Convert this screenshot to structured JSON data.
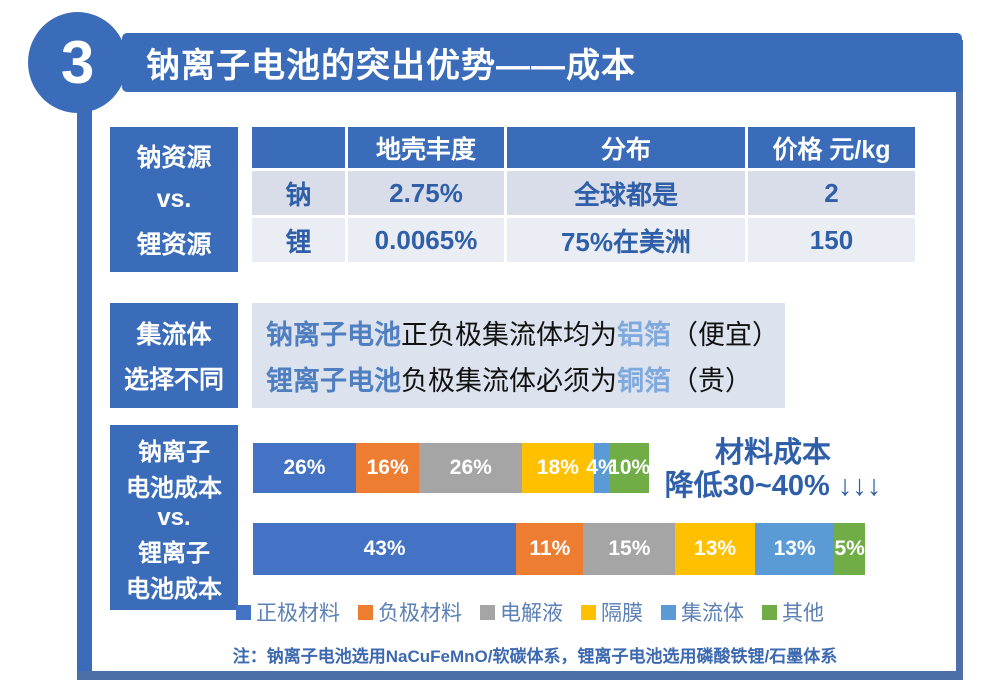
{
  "slide": {
    "number": "3",
    "title": "钠离子电池的突出优势——成本"
  },
  "colors": {
    "primary_blue": "#3a6cba",
    "frame_blue": "#4d6fa8",
    "value_text_blue": "#2e5fa8",
    "table_row_light": "#d9dde9",
    "table_row_lighter": "#eaedf4",
    "collector_box_bg": "#dce3ef"
  },
  "resources": {
    "label": [
      "钠资源",
      "vs.",
      "锂资源"
    ],
    "table": {
      "headers": [
        "",
        "地壳丰度",
        "分布",
        "价格 元/kg"
      ],
      "rows": [
        [
          "钠",
          "2.75%",
          "全球都是",
          "2"
        ],
        [
          "锂",
          "0.0065%",
          "75%在美洲",
          "150"
        ]
      ]
    }
  },
  "collector": {
    "label": [
      "集流体",
      "选择不同"
    ],
    "lines": [
      {
        "prefix": "钠离子电池",
        "body": "正负极集流体均为",
        "highlight": "铝箔",
        "suffix": "（便宜）"
      },
      {
        "prefix": "锂离子电池",
        "body": "负极集流体必须为",
        "highlight": "铜箔",
        "suffix": "（贵）"
      }
    ]
  },
  "cost": {
    "label": [
      "钠离子",
      "电池成本",
      "vs.",
      "锂离子",
      "电池成本"
    ],
    "annotation": [
      "材料成本",
      "降低30~40% ↓↓↓"
    ],
    "note": "注：钠离子电池选用NaCuFeMnO/软碳体系，锂离子电池选用磷酸铁锂/石墨体系"
  },
  "chart_data": {
    "type": "bar",
    "orientation": "horizontal-stacked",
    "unit": "%",
    "categories": [
      "钠离子电池成本",
      "锂离子电池成本"
    ],
    "series": [
      {
        "name": "正极材料",
        "color": "#4472c4",
        "values": [
          26,
          43
        ]
      },
      {
        "name": "负极材料",
        "color": "#ed7d31",
        "values": [
          16,
          11
        ]
      },
      {
        "name": "电解液",
        "color": "#a5a5a5",
        "values": [
          26,
          15
        ]
      },
      {
        "name": "隔膜",
        "color": "#ffc000",
        "values": [
          18,
          13
        ]
      },
      {
        "name": "集流体",
        "color": "#5b9bd5",
        "values": [
          4,
          13
        ]
      },
      {
        "name": "其他",
        "color": "#70ad47",
        "values": [
          10,
          5
        ]
      }
    ],
    "bar_relative_lengths": [
      0.64,
      1.0
    ],
    "legend_position": "bottom",
    "annotation": "材料成本降低30~40% ↓↓↓"
  }
}
